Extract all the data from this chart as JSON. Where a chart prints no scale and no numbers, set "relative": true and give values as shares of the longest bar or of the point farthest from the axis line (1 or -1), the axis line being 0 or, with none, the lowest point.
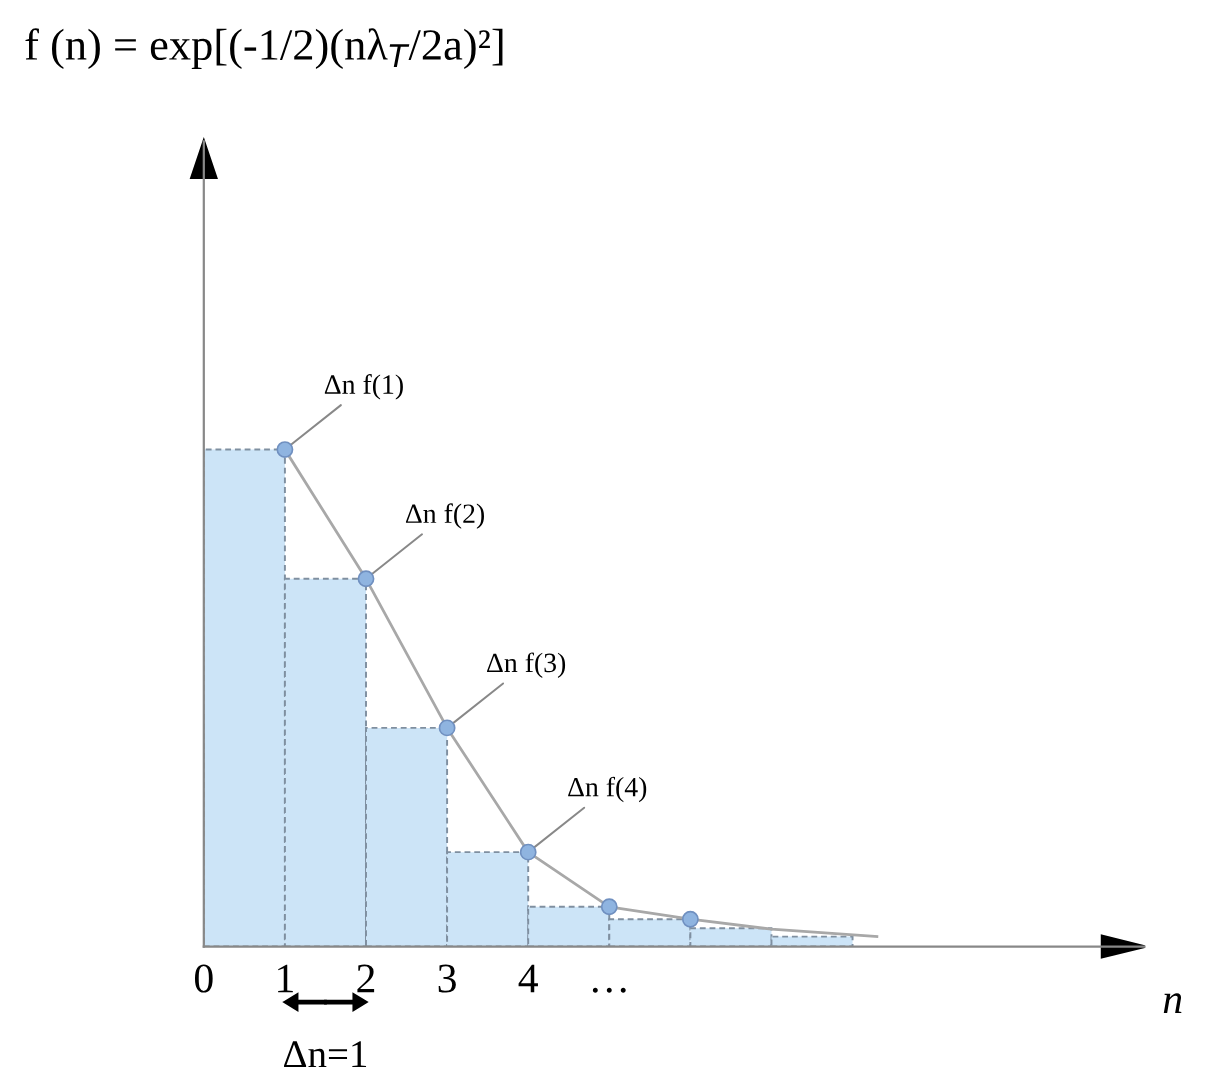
{
  "chart_data": {
    "type": "histogram",
    "relative": true,
    "title": "f (n) = exp[(-1/2)(nλ$_{T}$/2a)²]",
    "xlabel": "n",
    "bins": [
      0,
      1,
      2,
      3,
      4,
      5,
      6,
      7,
      8
    ],
    "values": [
      1,
      0.74,
      0.44,
      0.19,
      0.08,
      0.055,
      0.037,
      0.02
    ],
    "color": "#cce4f7",
    "xlim": [
      0,
      11.6
    ],
    "xticks": [
      {
        "value": 0,
        "label": "0"
      },
      1,
      2,
      3,
      4,
      {
        "value": 5,
        "label": "…"
      }
    ],
    "series": [
      {
        "type": "line",
        "color": "#a8a8a8",
        "x": [
          1,
          2,
          3,
          4,
          5,
          6,
          7,
          8.3
        ],
        "values": [
          1,
          0.74,
          0.44,
          0.19,
          0.08,
          0.055,
          0.035,
          0.02
        ]
      },
      {
        "type": "scatter",
        "color": "#8fb4e0",
        "x": [
          1,
          2,
          3,
          4,
          5,
          6
        ],
        "values": [
          1,
          0.74,
          0.44,
          0.19,
          0.08,
          0.055
        ]
      }
    ],
    "annotations": [
      {
        "text": "Δn f(1)",
        "x": 1,
        "y": 1
      },
      {
        "text": "Δn f(2)",
        "x": 2,
        "y": 0.74
      },
      {
        "text": "Δn f(3)",
        "x": 3,
        "y": 0.44
      },
      {
        "text": "Δn f(4)",
        "x": 4,
        "y": 0.19
      },
      {
        "text": "Δn=1",
        "x": 1.5,
        "y": 0
      }
    ]
  }
}
